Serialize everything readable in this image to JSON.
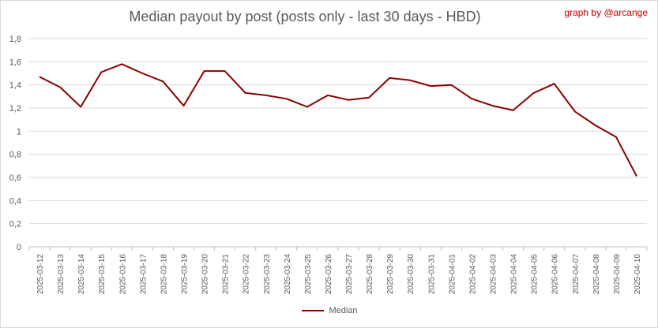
{
  "chart_data": {
    "type": "line",
    "title": "Median payout by post (posts only - last 30 days - HBD)",
    "credit": "graph by @arcange",
    "xlabel": "",
    "ylabel": "",
    "ylim": [
      0,
      1.8
    ],
    "yticks": [
      "0",
      "0,2",
      "0,4",
      "0,6",
      "0,8",
      "1",
      "1,2",
      "1,4",
      "1,6",
      "1,8"
    ],
    "grid": true,
    "legend_position": "bottom",
    "colors": {
      "line": "#8b0000",
      "grid": "#d9d9d9",
      "axis": "#bfbfbf",
      "text": "#595959",
      "credit": "#c00000"
    },
    "categories": [
      "2025-03-12",
      "2025-03-13",
      "2025-03-14",
      "2025-03-15",
      "2025-03-16",
      "2025-03-17",
      "2025-03-18",
      "2025-03-19",
      "2025-03-20",
      "2025-03-21",
      "2025-03-22",
      "2025-03-23",
      "2025-03-24",
      "2025-03-25",
      "2025-03-26",
      "2025-03-27",
      "2025-03-28",
      "2025-03-29",
      "2025-03-30",
      "2025-03-31",
      "2025-04-01",
      "2025-04-02",
      "2025-04-03",
      "2025-04-04",
      "2025-04-05",
      "2025-04-06",
      "2025-04-07",
      "2025-04-08",
      "2025-04-09",
      "2025-04-10"
    ],
    "series": [
      {
        "name": "Median",
        "values": [
          1.47,
          1.38,
          1.21,
          1.51,
          1.58,
          1.5,
          1.43,
          1.22,
          1.52,
          1.52,
          1.33,
          1.31,
          1.28,
          1.21,
          1.31,
          1.27,
          1.29,
          1.46,
          1.44,
          1.39,
          1.4,
          1.28,
          1.22,
          1.18,
          1.33,
          1.41,
          1.17,
          1.05,
          0.95,
          0.61
        ]
      }
    ]
  }
}
